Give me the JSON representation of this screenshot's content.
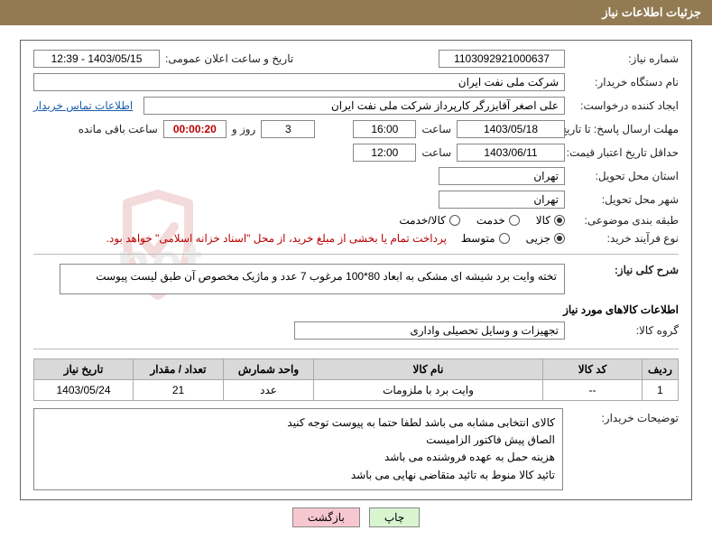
{
  "colors": {
    "header_bg": "#8d734a",
    "header_fg": "#ffffff",
    "border": "#888888",
    "table_header_bg": "#d9d9d9",
    "link": "#1a5dab",
    "red": "#b00000",
    "btn_print_bg": "#d8f5d0",
    "btn_back_bg": "#f7c7cf",
    "watermark_shield": "#c23b3b",
    "watermark_text": "#9e9e9e"
  },
  "header": {
    "title": "جزئیات اطلاعات نیاز"
  },
  "labels": {
    "need_no": "شماره نیاز:",
    "announce_dt": "تاریخ و ساعت اعلان عمومی:",
    "buyer_org": "نام دستگاه خریدار:",
    "requester": "ایجاد کننده درخواست:",
    "contact_link": "اطلاعات تماس خریدار",
    "reply_deadline": "مهلت ارسال پاسخ: تا تاریخ:",
    "hour": "ساعت",
    "day_and": "روز و",
    "remain": "ساعت باقی مانده",
    "price_valid_min": "حداقل تاریخ اعتبار قیمت: تا تاریخ:",
    "province": "استان محل تحویل:",
    "city": "شهر محل تحویل:",
    "category": "طبقه بندی موضوعی:",
    "process": "نوع فرآیند خرید:",
    "need_desc": "شرح کلی نیاز:",
    "goods_info": "اطلاعات کالاهای مورد نیاز",
    "goods_group": "گروه کالا:",
    "buyer_notes": "توضیحات خریدار:"
  },
  "fields": {
    "need_no": "1103092921000637",
    "announce_dt": "1403/05/15 - 12:39",
    "buyer_org": "شرکت ملی نفت ایران",
    "requester": "علی اصغر آقایزرگر کارپرداز شرکت ملی نفت ایران",
    "reply_date": "1403/05/18",
    "reply_time": "16:00",
    "remain_days": "3",
    "remain_time": "00:00:20",
    "price_valid_date": "1403/06/11",
    "price_valid_time": "12:00",
    "province": "تهران",
    "city": "تهران",
    "payment_note": "پرداخت تمام یا بخشی از مبلغ خرید، از محل \"اسناد خزانه اسلامی\" خواهد بود.",
    "need_desc": "تخته وایت برد شیشه ای مشکی  به ابعاد 80*100 مرغوب 7 عدد و ماژیک مخصوص آن طبق لیست پیوست",
    "goods_group": "تجهیزات و وسایل تحصیلی واداری"
  },
  "radios": {
    "category": [
      {
        "label": "کالا",
        "selected": true
      },
      {
        "label": "خدمت",
        "selected": false
      },
      {
        "label": "کالا/خدمت",
        "selected": false
      }
    ],
    "process": [
      {
        "label": "جزیی",
        "selected": true
      },
      {
        "label": "متوسط",
        "selected": false
      }
    ]
  },
  "items_table": {
    "columns": [
      "ردیف",
      "کد کالا",
      "نام کالا",
      "واحد شمارش",
      "تعداد / مقدار",
      "تاریخ نیاز"
    ],
    "col_widths": [
      "40px",
      "110px",
      "auto",
      "100px",
      "100px",
      "110px"
    ],
    "rows": [
      [
        "1",
        "--",
        "وایت برد با ملزومات",
        "عدد",
        "21",
        "1403/05/24"
      ]
    ]
  },
  "buyer_notes_lines": [
    "کالای انتخابی مشابه می باشد لطفا حتما به پیوست توجه کنید",
    "الصاق پیش فاکتور الزامیست",
    "هزینه حمل به عهده فروشنده می باشد",
    "تائید کالا منوط به تائید متقاضی نهایی می باشد"
  ],
  "buttons": {
    "print": "چاپ",
    "back": "بازگشت"
  },
  "watermark": {
    "text": "IranTender.net"
  }
}
